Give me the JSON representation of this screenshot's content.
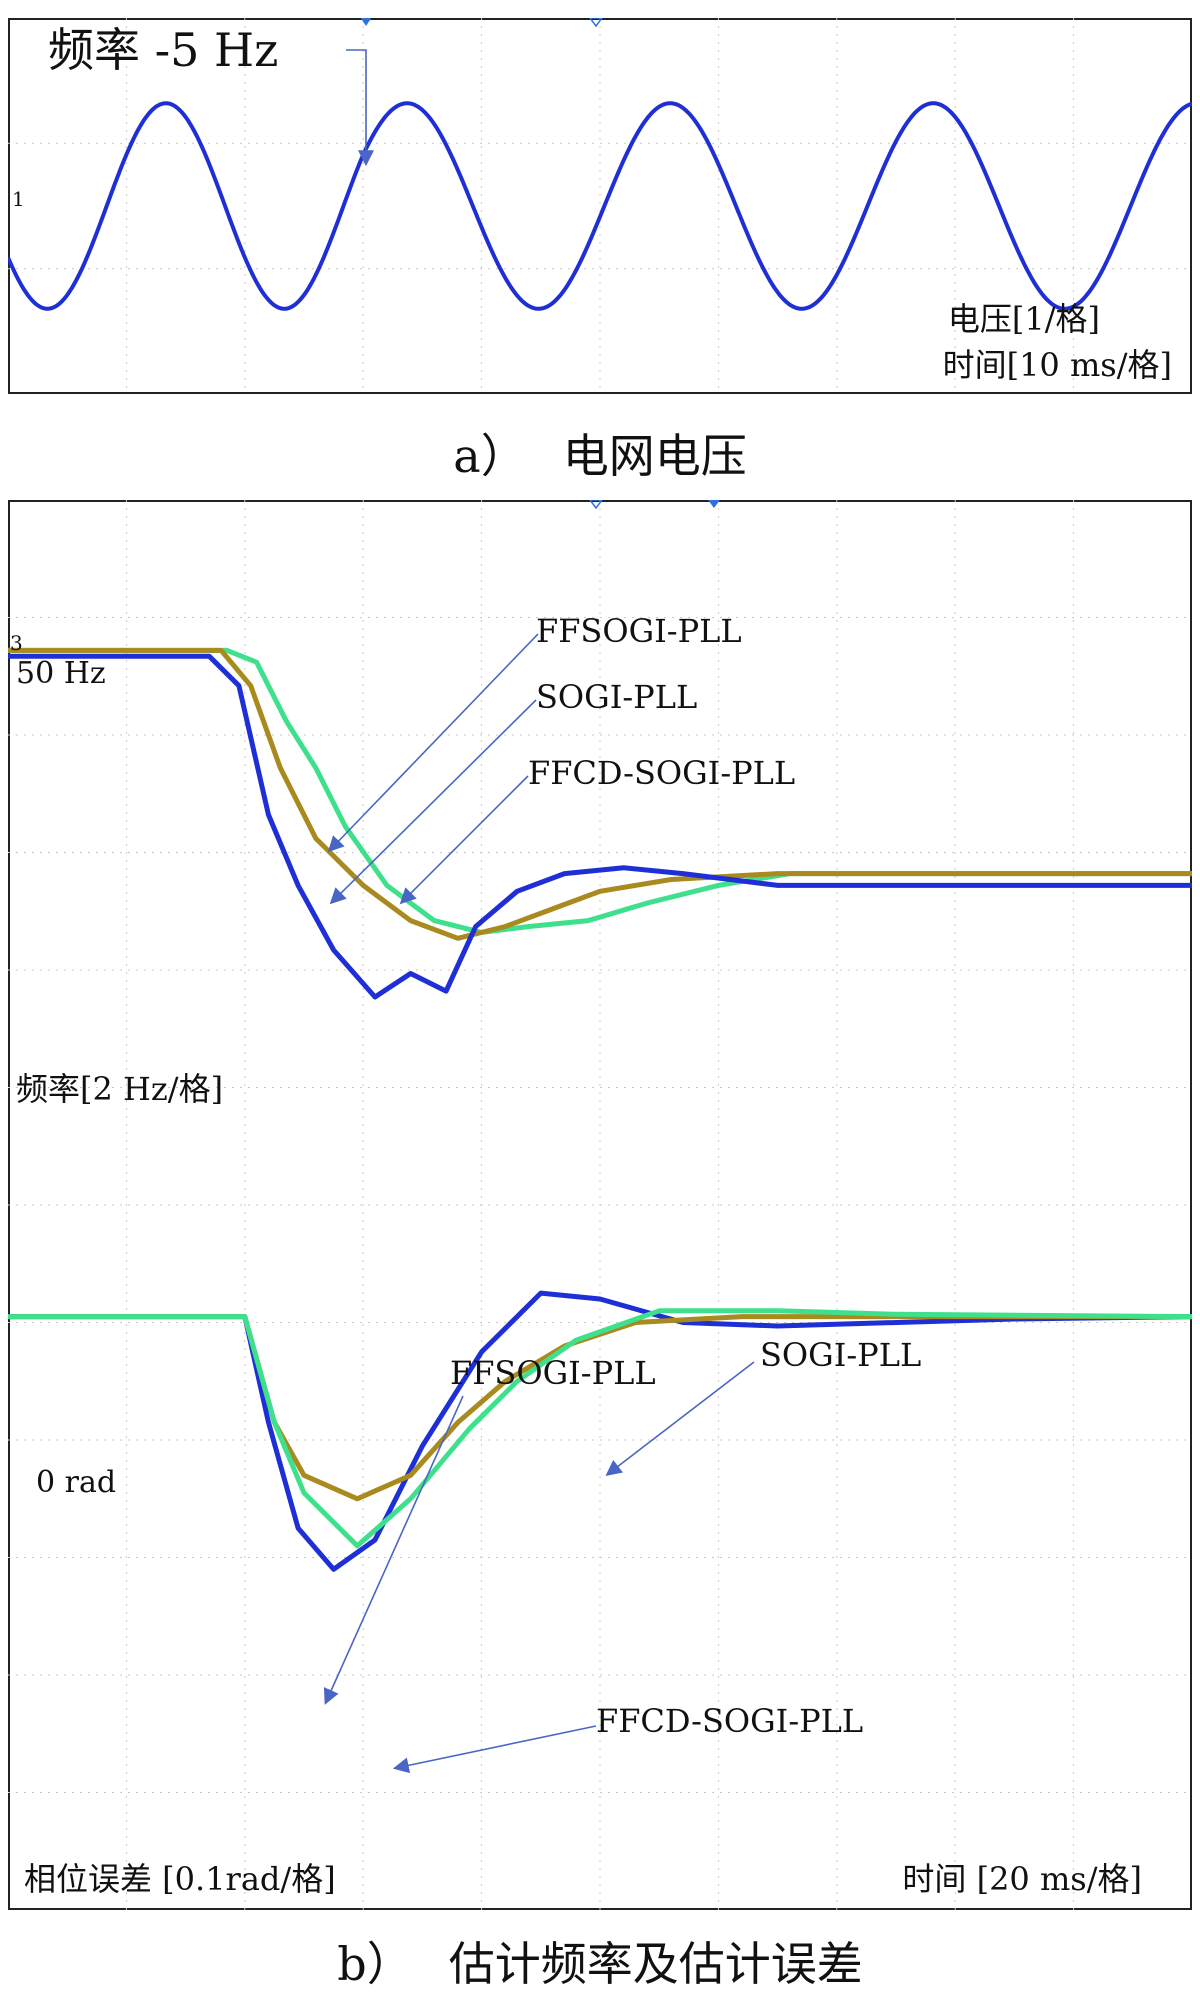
{
  "chart_data": [
    {
      "panel": "a)",
      "type": "line",
      "caption": "电网电压",
      "annotation": "频率 -5 Hz",
      "channel_marker": "1",
      "scale_labels": [
        "电压[1/格]",
        "时间[10 ms/格]"
      ],
      "grid": true,
      "divisions": {
        "x": 10,
        "y": 3
      },
      "series": [
        {
          "name": "",
          "color": "#1f2fd6",
          "signal": {
            "amplitude_div": 0.82,
            "offset_div": 0.0,
            "freq_before_hz": 50,
            "freq_after_hz": 45,
            "step_time_ms": 30,
            "time_span_ms": 100,
            "phase_start_deg": 210
          }
        }
      ]
    },
    {
      "panel": "b)",
      "type": "line",
      "caption": "估计频率及估计误差",
      "grid": true,
      "divisions": {
        "x": 10,
        "y": 12
      },
      "x_unit": "div",
      "upper": {
        "channel_marker": "3",
        "ref_label": "50 Hz",
        "scale_label": "频率[2 Hz/格]",
        "series": [
          {
            "name": "FFSOGI-PLL",
            "color": "#1f2fd6",
            "points": [
              [
                0,
                -0.05
              ],
              [
                1.7,
                -0.05
              ],
              [
                1.95,
                -0.3
              ],
              [
                2.2,
                -1.4
              ],
              [
                2.45,
                -2.0
              ],
              [
                2.75,
                -2.55
              ],
              [
                3.1,
                -2.95
              ],
              [
                3.4,
                -2.75
              ],
              [
                3.7,
                -2.9
              ],
              [
                3.95,
                -2.35
              ],
              [
                4.3,
                -2.05
              ],
              [
                4.7,
                -1.9
              ],
              [
                5.2,
                -1.85
              ],
              [
                5.7,
                -1.9
              ],
              [
                6.5,
                -2.0
              ],
              [
                10,
                -2.0
              ]
            ]
          },
          {
            "name": "SOGI-PLL",
            "color": "#a88a1e",
            "points": [
              [
                0,
                0.0
              ],
              [
                1.8,
                0.0
              ],
              [
                2.05,
                -0.3
              ],
              [
                2.3,
                -1.0
              ],
              [
                2.6,
                -1.6
              ],
              [
                3.0,
                -2.0
              ],
              [
                3.4,
                -2.3
              ],
              [
                3.8,
                -2.45
              ],
              [
                4.2,
                -2.35
              ],
              [
                4.6,
                -2.2
              ],
              [
                5.0,
                -2.05
              ],
              [
                5.6,
                -1.95
              ],
              [
                6.5,
                -1.9
              ],
              [
                10,
                -1.9
              ]
            ]
          },
          {
            "name": "FFCD-SOGI-PLL",
            "color": "#3ee08c",
            "points": [
              [
                0,
                0.0
              ],
              [
                1.85,
                0.0
              ],
              [
                2.1,
                -0.1
              ],
              [
                2.35,
                -0.6
              ],
              [
                2.6,
                -1.0
              ],
              [
                2.85,
                -1.5
              ],
              [
                3.2,
                -2.0
              ],
              [
                3.6,
                -2.3
              ],
              [
                4.0,
                -2.4
              ],
              [
                4.4,
                -2.35
              ],
              [
                4.9,
                -2.3
              ],
              [
                5.4,
                -2.15
              ],
              [
                6.0,
                -2.0
              ],
              [
                6.6,
                -1.9
              ],
              [
                10,
                -1.9
              ]
            ]
          }
        ]
      },
      "lower": {
        "ref_label": "0 rad",
        "scale_labels": [
          "相位误差 [0.1rad/格]",
          "时间 [20 ms/格]"
        ],
        "series": [
          {
            "name": "SOGI-PLL",
            "color": "#1f2fd6",
            "points": [
              [
                0,
                0.0
              ],
              [
                2.0,
                0.0
              ],
              [
                2.2,
                -0.9
              ],
              [
                2.45,
                -1.8
              ],
              [
                2.75,
                -2.15
              ],
              [
                3.1,
                -1.9
              ],
              [
                3.5,
                -1.1
              ],
              [
                4.0,
                -0.3
              ],
              [
                4.5,
                0.2
              ],
              [
                5.0,
                0.15
              ],
              [
                5.7,
                -0.05
              ],
              [
                6.5,
                -0.08
              ],
              [
                8.5,
                -0.02
              ],
              [
                10,
                0.0
              ]
            ]
          },
          {
            "name": "FFSOGI-PLL",
            "color": "#a88a1e",
            "points": [
              [
                0,
                0.0
              ],
              [
                2.0,
                0.0
              ],
              [
                2.25,
                -0.9
              ],
              [
                2.5,
                -1.35
              ],
              [
                2.95,
                -1.55
              ],
              [
                3.4,
                -1.35
              ],
              [
                3.8,
                -0.9
              ],
              [
                4.2,
                -0.55
              ],
              [
                4.7,
                -0.25
              ],
              [
                5.3,
                -0.05
              ],
              [
                6.2,
                0.0
              ],
              [
                10,
                0.0
              ]
            ]
          },
          {
            "name": "FFCD-SOGI-PLL",
            "color": "#3ee08c",
            "points": [
              [
                0,
                0.0
              ],
              [
                2.0,
                0.0
              ],
              [
                2.25,
                -0.9
              ],
              [
                2.5,
                -1.5
              ],
              [
                2.95,
                -1.95
              ],
              [
                3.4,
                -1.55
              ],
              [
                3.9,
                -0.95
              ],
              [
                4.3,
                -0.55
              ],
              [
                4.8,
                -0.2
              ],
              [
                5.5,
                0.05
              ],
              [
                6.5,
                0.05
              ],
              [
                7.5,
                0.02
              ],
              [
                10,
                0.0
              ]
            ]
          }
        ]
      },
      "arrow_labels": {
        "upper": [
          "FFSOGI-PLL",
          "SOGI-PLL",
          "FFCD-SOGI-PLL"
        ],
        "lower": [
          "FFSOGI-PLL",
          "SOGI-PLL",
          "FFCD-SOGI-PLL"
        ]
      }
    }
  ]
}
